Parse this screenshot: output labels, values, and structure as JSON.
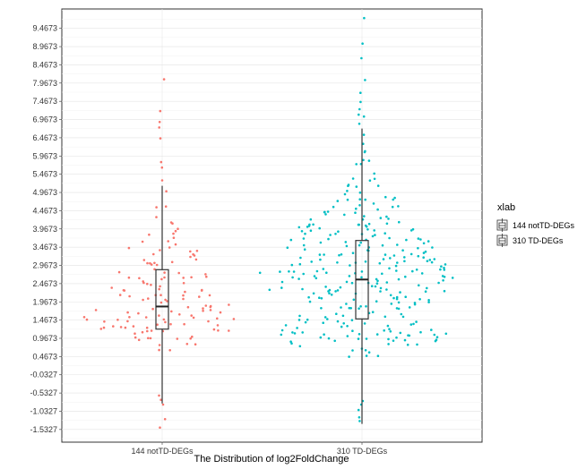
{
  "chart_data": {
    "type": "scatter",
    "subtype": "beeswarm-with-boxplot",
    "title": "",
    "xlabel": "The Distribution of log2FoldChange",
    "ylabel": "",
    "categories": [
      "144 notTD-DEGs",
      "310 TD-DEGs"
    ],
    "yticks": [
      "-1.5327",
      "-1.0327",
      "-0.5327",
      "-0.0327",
      "0.4673",
      "0.9673",
      "1.4673",
      "1.9673",
      "2.4673",
      "2.9673",
      "3.4673",
      "3.9673",
      "4.4673",
      "4.9673",
      "5.4673",
      "5.9673",
      "6.4673",
      "6.9673",
      "7.4673",
      "7.9673",
      "8.4673",
      "8.9673",
      "9.4673"
    ],
    "ylim": [
      -1.88,
      10.0
    ],
    "grid": true,
    "legend": {
      "title": "xlab",
      "position": "right",
      "entries": [
        "144 notTD-DEGs",
        "310 TD-DEGs"
      ]
    },
    "series": [
      {
        "category": "144 notTD-DEGs",
        "color": "#F8766D",
        "n": 144,
        "box": {
          "q1": 1.22,
          "median": 1.84,
          "q3": 2.85,
          "whisker_low": -0.82,
          "whisker_high": 5.15
        },
        "extremes": [
          8.07,
          7.2,
          6.9,
          6.75,
          6.45,
          5.8,
          5.65,
          5.3,
          -0.6,
          -0.72,
          -0.85,
          -1.25,
          -1.48
        ],
        "density": [
          [
            0.6,
            0.1
          ],
          [
            0.9,
            0.55
          ],
          [
            1.2,
            0.95
          ],
          [
            1.5,
            1.0
          ],
          [
            1.8,
            0.85
          ],
          [
            2.1,
            0.72
          ],
          [
            2.4,
            0.65
          ],
          [
            2.7,
            0.58
          ],
          [
            3.0,
            0.5
          ],
          [
            3.3,
            0.45
          ],
          [
            3.6,
            0.3
          ],
          [
            3.9,
            0.22
          ],
          [
            4.2,
            0.16
          ],
          [
            4.5,
            0.12
          ],
          [
            4.9,
            0.08
          ]
        ]
      },
      {
        "category": "310 TD-DEGs",
        "color": "#00BFC4",
        "n": 310,
        "box": {
          "q1": 1.5,
          "median": 2.58,
          "q3": 3.65,
          "whisker_low": -1.38,
          "whisker_high": 6.72
        },
        "extremes": [
          9.75,
          9.05,
          8.65,
          8.05,
          7.7,
          7.45,
          7.25,
          7.1,
          7.05,
          6.85,
          6.55,
          6.3,
          6.1,
          -0.75,
          -0.85,
          -1.0,
          -1.2,
          -1.3
        ],
        "density": [
          [
            0.6,
            0.25
          ],
          [
            0.9,
            0.75
          ],
          [
            1.2,
            0.82
          ],
          [
            1.5,
            0.62
          ],
          [
            1.8,
            0.55
          ],
          [
            2.1,
            0.7
          ],
          [
            2.4,
            0.9
          ],
          [
            2.7,
            1.0
          ],
          [
            3.0,
            0.82
          ],
          [
            3.3,
            0.7
          ],
          [
            3.6,
            0.72
          ],
          [
            3.9,
            0.62
          ],
          [
            4.2,
            0.52
          ],
          [
            4.5,
            0.42
          ],
          [
            4.8,
            0.33
          ],
          [
            5.1,
            0.22
          ],
          [
            5.4,
            0.14
          ],
          [
            5.7,
            0.1
          ],
          [
            6.0,
            0.07
          ]
        ]
      }
    ]
  }
}
